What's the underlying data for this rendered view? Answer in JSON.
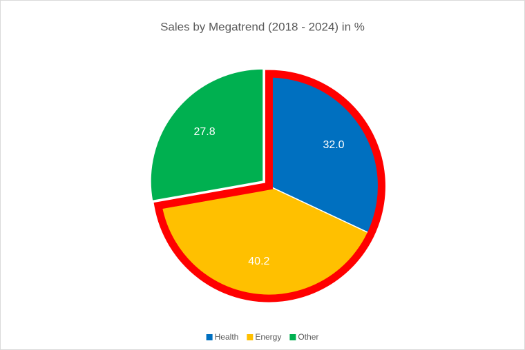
{
  "chart_data": {
    "type": "pie",
    "title": "Sales by Megatrend (2018 - 2024) in %",
    "categories": [
      "Health",
      "Energy",
      "Other"
    ],
    "values": [
      32.0,
      40.2,
      27.8
    ],
    "value_labels": [
      "32.0",
      "40.2",
      "27.8"
    ],
    "colors": [
      "#0070c0",
      "#ffc000",
      "#00b050"
    ],
    "exploded": [
      true,
      true,
      false
    ],
    "highlight_color": "#ff0000",
    "legend": "bottom"
  }
}
